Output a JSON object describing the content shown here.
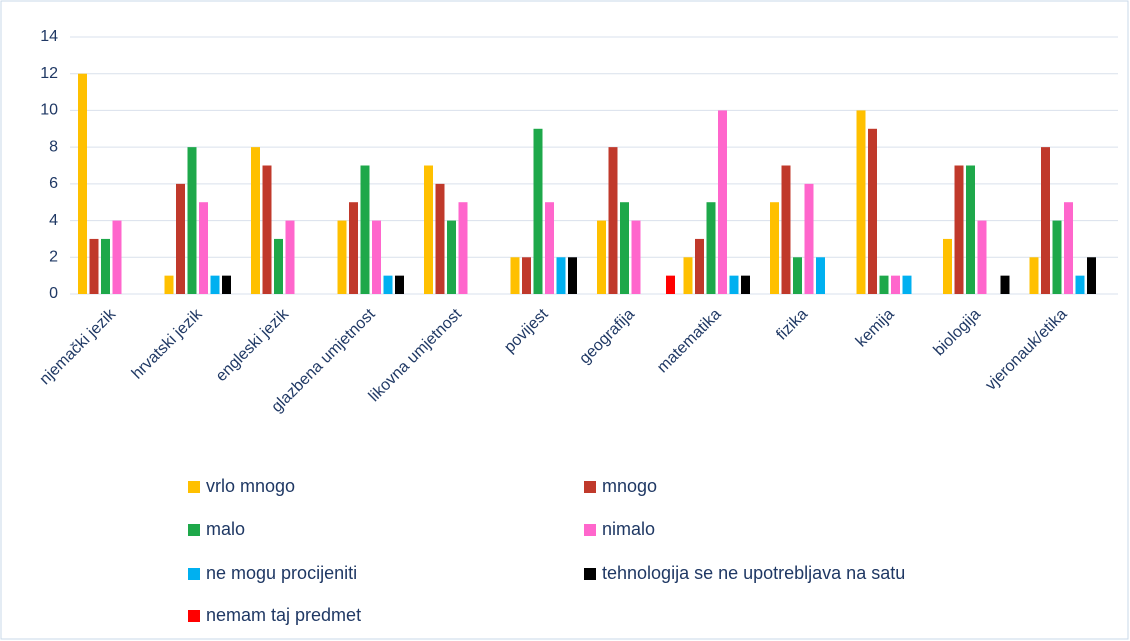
{
  "chart_data": {
    "type": "bar",
    "categories": [
      "njemački jezik",
      "hrvatski jezik",
      "engleski jezik",
      "glazbena umjetnost",
      "likovna umjetnost",
      "povijest",
      "geografija",
      "matematika",
      "fizika",
      "kemija",
      "biologija",
      "vjeronauk/etika"
    ],
    "series": [
      {
        "name": "vrlo mnogo",
        "color": "#ffc000",
        "values": [
          12,
          1,
          8,
          4,
          7,
          2,
          4,
          2,
          5,
          10,
          3,
          2
        ]
      },
      {
        "name": "mnogo",
        "color": "#c0392b",
        "values": [
          3,
          6,
          7,
          5,
          6,
          2,
          8,
          3,
          7,
          9,
          7,
          8
        ]
      },
      {
        "name": "malo",
        "color": "#1ea84a",
        "values": [
          3,
          8,
          3,
          7,
          4,
          9,
          5,
          5,
          2,
          1,
          7,
          4
        ]
      },
      {
        "name": "nimalo",
        "color": "#ff66cc",
        "values": [
          4,
          5,
          4,
          4,
          5,
          5,
          4,
          10,
          6,
          1,
          4,
          5
        ]
      },
      {
        "name": "ne mogu procijeniti",
        "color": "#00b0f0",
        "values": [
          0,
          1,
          0,
          1,
          0,
          2,
          0,
          1,
          2,
          1,
          0,
          1
        ]
      },
      {
        "name": "tehnologija se ne upotrebljava na satu",
        "color": "#000000",
        "values": [
          0,
          1,
          0,
          1,
          0,
          2,
          0,
          1,
          0,
          0,
          1,
          2
        ]
      },
      {
        "name": "nemam taj predmet",
        "color": "#ff0000",
        "values": [
          0,
          0,
          0,
          0,
          0,
          0,
          1,
          0,
          0,
          0,
          0,
          0
        ]
      }
    ],
    "ylim": [
      0,
      14
    ],
    "yticks": [
      0,
      2,
      4,
      6,
      8,
      10,
      12,
      14
    ],
    "grid": true,
    "legend": "bottom"
  }
}
